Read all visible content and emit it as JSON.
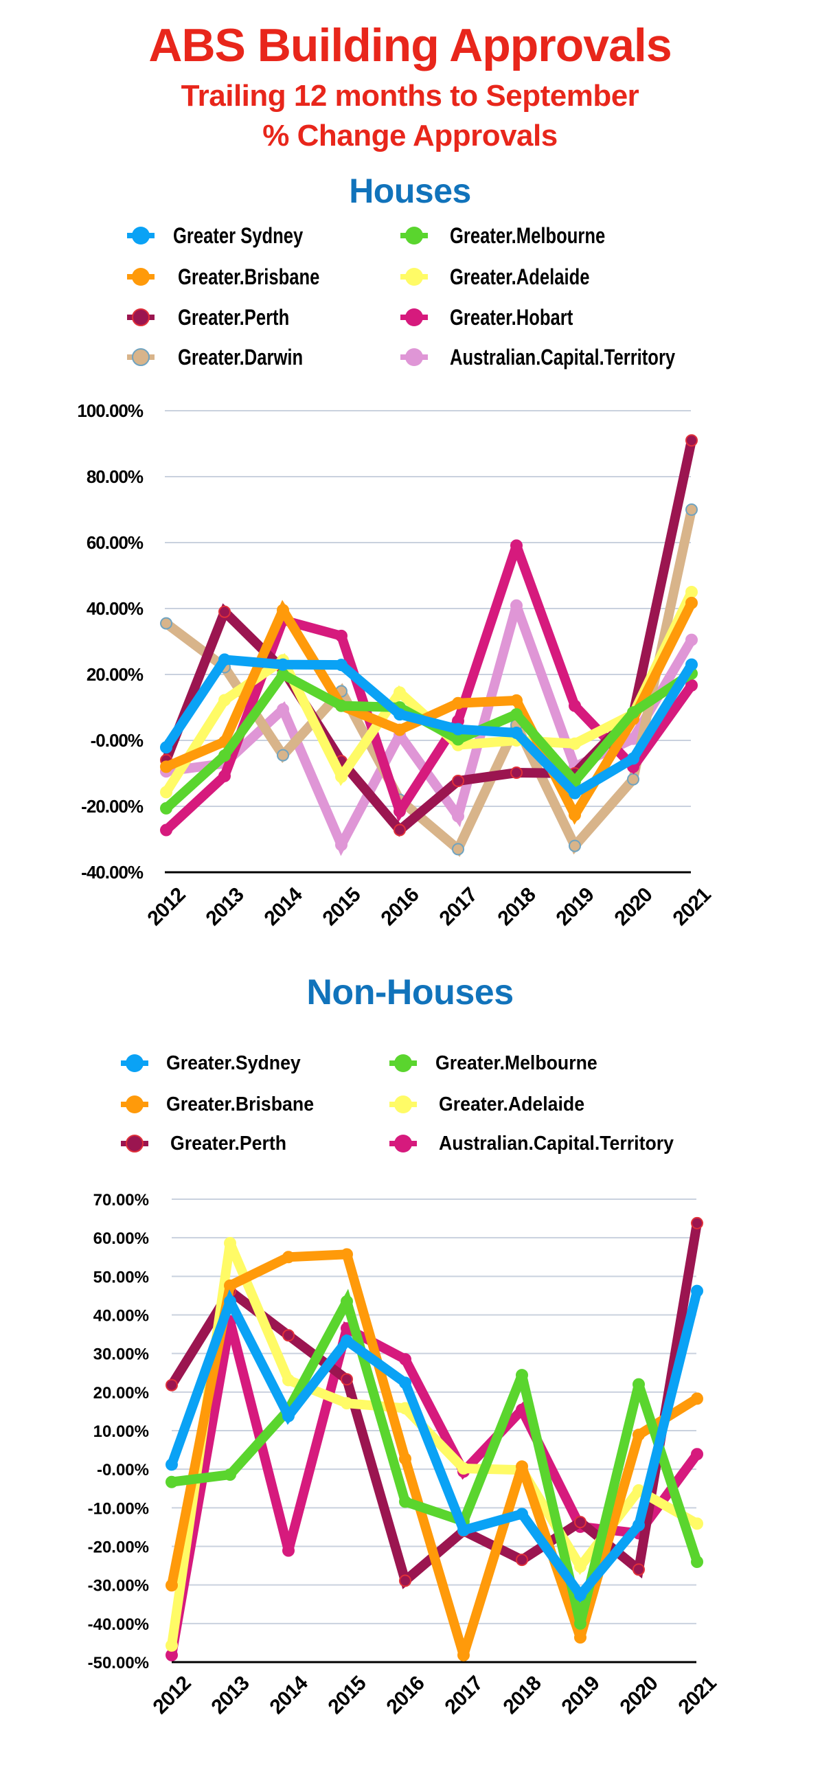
{
  "header": {
    "title": "ABS Building Approvals",
    "subtitle_line1": "Trailing 12 months to September",
    "subtitle_line2": "% Change Approvals",
    "title_color": "#e8261b"
  },
  "chart_data": [
    {
      "type": "line",
      "title": "Houses",
      "title_color": "#1173bb",
      "xlabel": "",
      "ylabel": "",
      "categories": [
        "2012",
        "2013",
        "2014",
        "2015",
        "2016",
        "2017",
        "2018",
        "2019",
        "2020",
        "2021"
      ],
      "ylim": [
        -40,
        100
      ],
      "ytick_values": [
        100,
        80,
        60,
        40,
        20,
        0,
        -20,
        -40
      ],
      "ytick_labels": [
        "100.00%",
        "80.00%",
        "60.00%",
        "40.00%",
        "20.00%",
        "-0.00%",
        "-20.00%",
        "-40.00%"
      ],
      "grid": true,
      "legend_position": "top",
      "series": [
        {
          "name": "Greater Sydney",
          "color": "#0aa2f5",
          "outline": "#0aa2f5",
          "values": [
            -2.1,
            24.5,
            23.0,
            22.9,
            7.9,
            3.4,
            2.3,
            -16.0,
            -5.5,
            23.0
          ]
        },
        {
          "name": "Greater.Melbourne",
          "color": "#5ad52e",
          "outline": "#5ad52e",
          "values": [
            -20.6,
            -4.6,
            20.0,
            10.5,
            10.0,
            0.3,
            7.9,
            -12.4,
            8.5,
            20.3
          ]
        },
        {
          "name": "Greater.Brisbane",
          "color": "#ff9a0a",
          "outline": "#ff9a0a",
          "values": [
            -8.0,
            -0.4,
            39.5,
            10.5,
            3.2,
            11.3,
            12.1,
            -22.6,
            6.5,
            41.7
          ]
        },
        {
          "name": "Greater.Adelaide",
          "color": "#fffb66",
          "outline": "#fffb66",
          "values": [
            -15.7,
            12.2,
            24.3,
            -11.0,
            14.5,
            -1.4,
            0.0,
            -1.0,
            8.0,
            45.0
          ]
        },
        {
          "name": "Greater.Perth",
          "color": "#9b1550",
          "outline": "#e0303a",
          "values": [
            -6.0,
            39.0,
            21.5,
            -6.3,
            -27.2,
            -12.3,
            -9.8,
            -10.0,
            8.0,
            91.0
          ]
        },
        {
          "name": "Greater.Hobart",
          "color": "#d61a7d",
          "outline": "#d61a7d",
          "values": [
            -27.2,
            -10.8,
            36.5,
            31.7,
            -21.5,
            5.9,
            59.1,
            10.5,
            -8.0,
            16.7
          ]
        },
        {
          "name": "Greater.Darwin",
          "color": "#d8b48a",
          "outline": "#6fa3c0",
          "values": [
            35.5,
            22.2,
            -4.5,
            14.9,
            -18.0,
            -33.0,
            4.7,
            -32.0,
            -11.8,
            70.0
          ]
        },
        {
          "name": "Australian.Capital.Territory",
          "color": "#df96d6",
          "outline": "#df96d6",
          "values": [
            -9.4,
            -7.0,
            9.4,
            -31.7,
            1.7,
            -23.0,
            40.9,
            -8.0,
            0.5,
            30.5
          ]
        }
      ]
    },
    {
      "type": "line",
      "title": "Non-Houses",
      "title_color": "#1173bb",
      "xlabel": "",
      "ylabel": "",
      "categories": [
        "2012",
        "2013",
        "2014",
        "2015",
        "2016",
        "2017",
        "2018",
        "2019",
        "2020",
        "2021"
      ],
      "ylim": [
        -50,
        70
      ],
      "ytick_values": [
        70,
        60,
        50,
        40,
        30,
        20,
        10,
        0,
        -10,
        -20,
        -30,
        -40,
        -50
      ],
      "ytick_labels": [
        "70.00%",
        "60.00%",
        "50.00%",
        "40.00%",
        "30.00%",
        "20.00%",
        "10.00%",
        "-0.00%",
        "-10.00%",
        "-20.00%",
        "-30.00%",
        "-40.00%",
        "-50.00%"
      ],
      "grid": true,
      "legend_position": "top",
      "series": [
        {
          "name": "Greater.Sydney",
          "color": "#0aa2f5",
          "outline": "#0aa2f5",
          "values": [
            1.2,
            43.5,
            13.8,
            33.3,
            22.4,
            -15.8,
            -11.6,
            -32.6,
            -14.5,
            46.2
          ]
        },
        {
          "name": "Greater.Melbourne",
          "color": "#5ad52e",
          "outline": "#5ad52e",
          "values": [
            -3.3,
            -1.4,
            15.4,
            43.5,
            -8.4,
            -13.5,
            24.4,
            -40.0,
            22.0,
            -24.0
          ]
        },
        {
          "name": "Greater.Brisbane",
          "color": "#ff9a0a",
          "outline": "#ff9a0a",
          "values": [
            -30.1,
            47.6,
            55.0,
            55.7,
            2.7,
            -48.2,
            0.7,
            -43.6,
            8.9,
            18.3
          ]
        },
        {
          "name": "Greater.Adelaide",
          "color": "#fffb66",
          "outline": "#fffb66",
          "values": [
            -45.7,
            58.6,
            23.1,
            17.1,
            15.8,
            0.2,
            -0.2,
            -25.2,
            -5.5,
            -14.1
          ]
        },
        {
          "name": "Greater.Perth",
          "color": "#9b1550",
          "outline": "#e0303a",
          "values": [
            21.8,
            46.2,
            34.7,
            23.3,
            -28.9,
            -16.0,
            -23.5,
            -13.7,
            -26.0,
            63.8
          ]
        },
        {
          "name": "Australian.Capital.Territory",
          "color": "#d61a7d",
          "outline": "#d61a7d",
          "values": [
            -48.2,
            38.3,
            -21.1,
            36.5,
            28.5,
            -0.6,
            15.4,
            -14.9,
            -16.6,
            3.9
          ]
        }
      ]
    }
  ]
}
